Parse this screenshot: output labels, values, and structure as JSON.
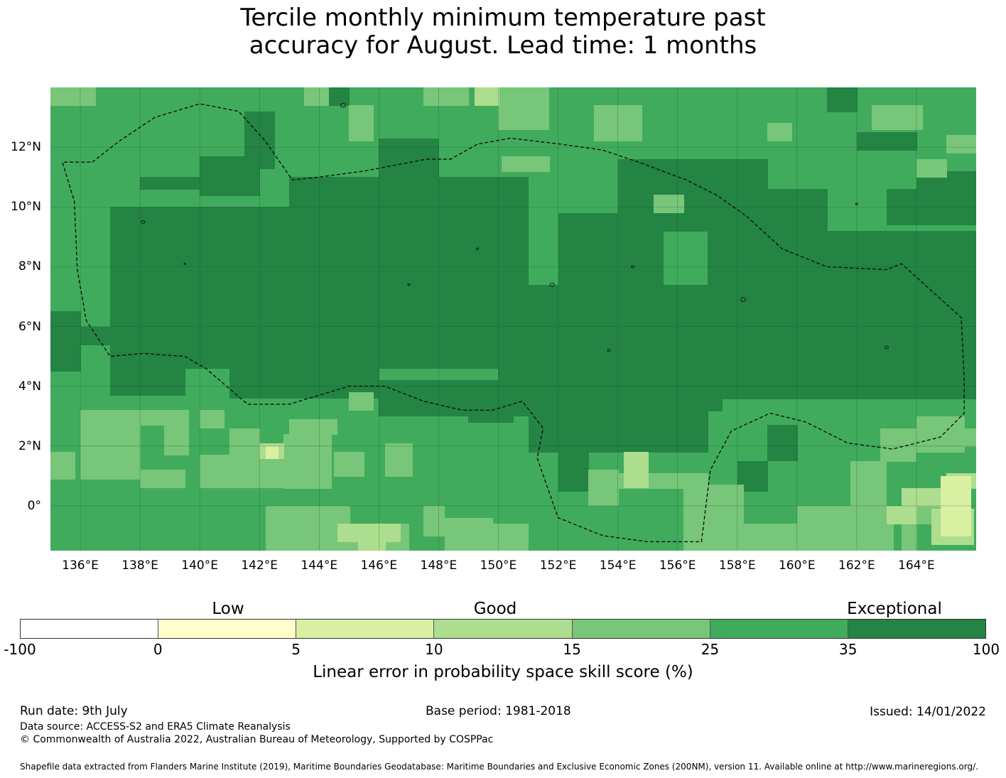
{
  "title": {
    "line1": "Tercile monthly minimum temperature past",
    "line2": "accuracy for August. Lead time: 1 months"
  },
  "map": {
    "lat_labels": [
      "12°N",
      "10°N",
      "8°N",
      "6°N",
      "4°N",
      "2°N",
      "0°"
    ],
    "lon_labels": [
      "136°E",
      "138°E",
      "140°E",
      "142°E",
      "144°E",
      "146°E",
      "148°E",
      "150°E",
      "152°E",
      "154°E",
      "156°E",
      "158°E",
      "160°E",
      "162°E",
      "164°E"
    ],
    "lon_range": [
      135.0,
      166.0
    ],
    "lat_range": [
      -1.5,
      14.0
    ],
    "grid": "on",
    "boundary_style": "dashed",
    "colors": {
      "low": "#ffffcc",
      "good": "#addd8e",
      "exceptional": "#238443"
    }
  },
  "legend": {
    "categories": [
      "Low",
      "Good",
      "Exceptional"
    ],
    "bins": [
      {
        "from": -100,
        "to": 0,
        "color": "#ffffff"
      },
      {
        "from": 0,
        "to": 5,
        "color": "#ffffcc"
      },
      {
        "from": 5,
        "to": 10,
        "color": "#d9f0a3"
      },
      {
        "from": 10,
        "to": 15,
        "color": "#addd8e"
      },
      {
        "from": 15,
        "to": 25,
        "color": "#78c679"
      },
      {
        "from": 25,
        "to": 35,
        "color": "#41ab5d"
      },
      {
        "from": 35,
        "to": 100,
        "color": "#238443"
      }
    ],
    "tick_labels": [
      "-100",
      "0",
      "5",
      "10",
      "15",
      "25",
      "35",
      "100"
    ],
    "axis_label": "Linear error in probability space skill score (%)"
  },
  "footer": {
    "run_date": "Run date: 9th July",
    "base_period": "Base period: 1981-2018",
    "issued": "Issued: 14/01/2022",
    "data_source": "Data source: ACCESS-S2 and ERA5 Climate Reanalysis",
    "copyright": "© Commonwealth of Australia 2022, Australian Bureau of Meteorology, Supported by COSPPac",
    "shapefile": "Shapefile data extracted from Flanders Marine Institute (2019), Maritime Boundaries Geodatabase: Maritime Boundaries and Exclusive Economic Zones (200NM), version 11. Available online at http://www.marineregions.org/."
  }
}
